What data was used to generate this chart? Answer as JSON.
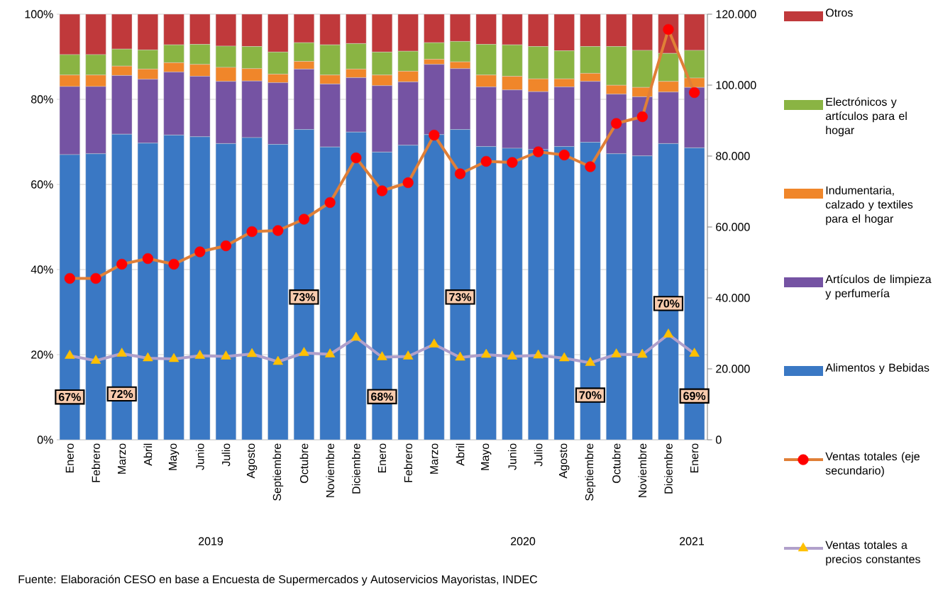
{
  "chart_data": {
    "type": "bar",
    "stacked": true,
    "grid": "y",
    "legend": "right",
    "categories": [
      "Enero",
      "Febrero",
      "Marzo",
      "Abril",
      "Mayo",
      "Junio",
      "Julio",
      "Agosto",
      "Septiembre",
      "Octubre",
      "Noviembre",
      "Diciembre",
      "Enero",
      "Febrero",
      "Marzo",
      "Abril",
      "Mayo",
      "Junio",
      "Julio",
      "Agosto",
      "Septiembre",
      "Octubre",
      "Noviembre",
      "Diciembre",
      "Enero"
    ],
    "ylim": [
      0,
      100
    ],
    "yticks": [
      {
        "value": 0,
        "label": "0%"
      },
      {
        "value": 20,
        "label": "20%"
      },
      {
        "value": 40,
        "label": "40%"
      },
      {
        "value": 60,
        "label": "60%"
      },
      {
        "value": 80,
        "label": "80%"
      },
      {
        "value": 100,
        "label": "100%"
      }
    ],
    "y2lim": [
      0,
      120000
    ],
    "y2ticks": [
      0,
      {
        "value": 20000,
        "label": "20.000"
      },
      {
        "value": 40000,
        "label": "40.000"
      },
      {
        "value": 60000,
        "label": "60.000"
      },
      {
        "value": 80000,
        "label": "80.000"
      },
      {
        "value": 100000,
        "label": "100.000"
      },
      {
        "value": 120000,
        "label": "120.000"
      }
    ],
    "series": [
      {
        "name": "Alimentos y Bebidas",
        "color": "#3a78c4",
        "values": [
          67.0,
          67.2,
          71.8,
          69.7,
          71.6,
          71.2,
          69.6,
          71.0,
          69.4,
          72.9,
          68.8,
          72.3,
          67.6,
          69.2,
          71.7,
          72.9,
          68.9,
          68.5,
          68.2,
          68.9,
          69.9,
          67.2,
          66.7,
          69.6,
          68.6
        ],
        "value_labels": [
          "67%",
          null,
          "72%",
          null,
          null,
          null,
          null,
          null,
          null,
          "73%",
          null,
          null,
          "68%",
          null,
          null,
          "73%",
          null,
          null,
          null,
          null,
          "70%",
          null,
          null,
          "70%",
          "69%"
        ]
      },
      {
        "name": "Artículos de limpieza y perfumería",
        "color": "#7553a3",
        "values": [
          16.0,
          15.8,
          13.8,
          15.0,
          14.8,
          14.2,
          14.6,
          13.3,
          14.5,
          14.2,
          14.8,
          12.8,
          15.6,
          14.9,
          16.5,
          14.3,
          14.0,
          13.7,
          13.6,
          14.0,
          14.3,
          14.0,
          13.9,
          12.1,
          14.2
        ]
      },
      {
        "name": "Indumentaria, calzado y textiles para el hogar",
        "color": "#f0862a",
        "values": [
          2.7,
          2.7,
          2.2,
          2.4,
          2.2,
          2.8,
          3.3,
          2.9,
          2.0,
          1.8,
          2.1,
          2.0,
          2.5,
          2.5,
          1.2,
          1.6,
          2.8,
          3.2,
          3.0,
          1.9,
          1.9,
          2.1,
          2.2,
          2.5,
          2.2
        ]
      },
      {
        "name": "Electrónicos y artículos para el hogar",
        "color": "#8ab443",
        "values": [
          4.8,
          4.8,
          4.0,
          4.5,
          4.2,
          4.7,
          5.0,
          5.2,
          5.2,
          4.4,
          7.1,
          6.0,
          5.4,
          4.7,
          3.9,
          4.8,
          7.2,
          7.4,
          7.6,
          6.6,
          6.3,
          9.1,
          8.7,
          6.6,
          6.5
        ]
      },
      {
        "name": "Otros",
        "color": "#c0393b",
        "values": [
          9.5,
          9.5,
          8.2,
          8.4,
          7.2,
          7.1,
          7.5,
          7.6,
          8.9,
          6.7,
          7.2,
          6.9,
          8.9,
          8.7,
          6.7,
          6.4,
          7.1,
          7.2,
          7.6,
          8.6,
          7.6,
          7.6,
          8.5,
          9.2,
          8.5
        ]
      },
      {
        "name": "Ventas totales (eje secundario)",
        "type": "line",
        "axis": "y2",
        "marker": "circle",
        "color": "#e07f37",
        "colors": [
          "#ff0000",
          "#ff0000",
          "#ff0000",
          "#ff0000",
          "#ff0000",
          "#ff0000",
          "#ff0000",
          "#ff0000",
          "#ff0000",
          "#ff0000",
          "#ff0000",
          "#ff0000",
          "#ff0000",
          "#ff0000",
          "#ff0000",
          "#ff0000",
          "#ff0000",
          "#ff0000",
          "#ff0000",
          "#ff0000",
          "#ff0000",
          "#ff0000",
          "#ff0000",
          "#ff0000",
          "#ff0000"
        ],
        "values": [
          45500,
          45500,
          49500,
          51100,
          49500,
          53000,
          54700,
          58700,
          59000,
          62200,
          66900,
          79500,
          70200,
          72500,
          85900,
          75000,
          78500,
          78200,
          81200,
          80300,
          77000,
          89200,
          91100,
          115700,
          97900
        ]
      },
      {
        "name": "Ventas totales a precios constantes",
        "type": "line",
        "axis": "y2",
        "marker": "triangle",
        "color": "#b1a0cb",
        "colors": [
          "#ffc000",
          "#ffc000",
          "#ffc000",
          "#ffc000",
          "#ffc000",
          "#ffc000",
          "#ffc000",
          "#ffc000",
          "#ffc000",
          "#ffc000",
          "#ffc000",
          "#ffc000",
          "#ffc000",
          "#ffc000",
          "#ffc000",
          "#ffc000",
          "#ffc000",
          "#ffc000",
          "#ffc000",
          "#ffc000",
          "#ffc000",
          "#ffc000",
          "#ffc000",
          "#ffc000",
          "#ffc000"
        ],
        "values": [
          23700,
          22300,
          24300,
          23000,
          22800,
          23700,
          23500,
          24200,
          22000,
          24500,
          24100,
          28800,
          23300,
          23500,
          26900,
          23200,
          24000,
          23500,
          23800,
          23000,
          21700,
          24100,
          24000,
          29700,
          24300
        ]
      }
    ],
    "annotations": [
      "2019",
      "2020",
      "2021",
      "Fuente: Elaboración CESO en base a Encuesta de Supermercados y Autoservicios Mayoristas, INDEC"
    ]
  }
}
